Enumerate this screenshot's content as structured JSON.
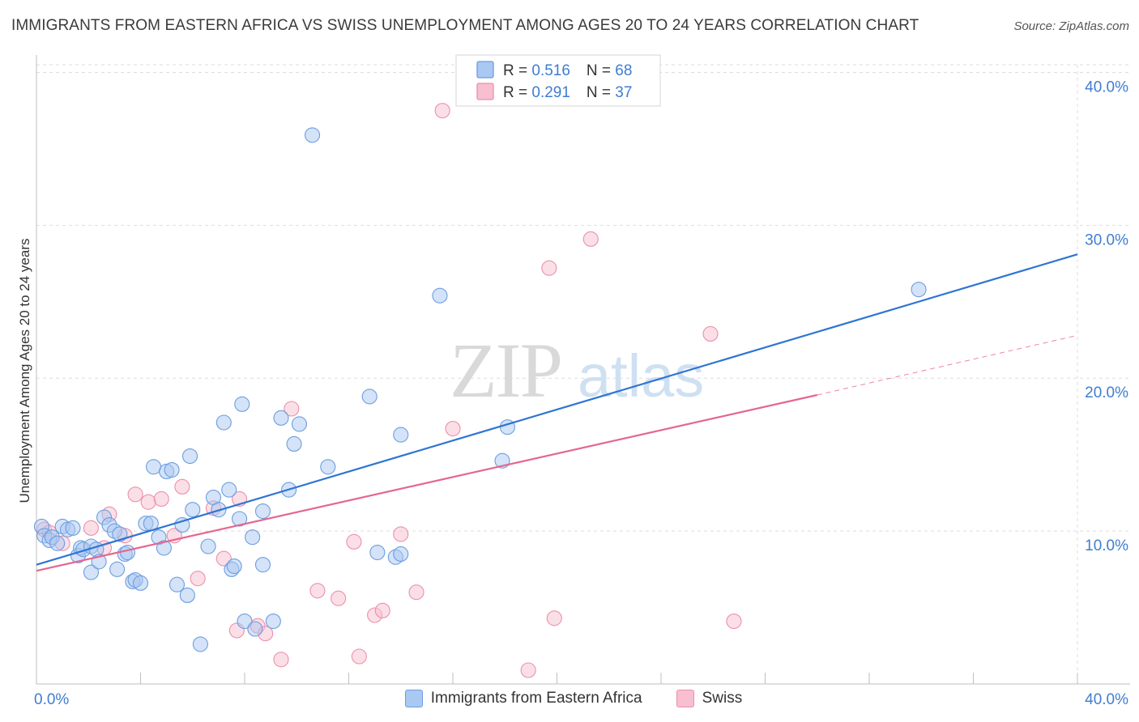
{
  "title": "IMMIGRANTS FROM EASTERN AFRICA VS SWISS UNEMPLOYMENT AMONG AGES 20 TO 24 YEARS CORRELATION CHART",
  "source": "Source: ZipAtlas.com",
  "watermark": {
    "zip": "ZIP",
    "atlas": "atlas"
  },
  "colors": {
    "blue": "#a9c8f2",
    "blue_stroke": "#6d9de0",
    "blue_line": "#2f75d3",
    "pink": "#f7bfd0",
    "pink_stroke": "#ec8fac",
    "pink_line": "#e5668f",
    "tick_label": "#3f7dd0"
  },
  "legend": {
    "items": [
      {
        "r_label": "R = ",
        "r_value": "0.516",
        "n_label": "N = ",
        "n_value": "68"
      },
      {
        "r_label": "R = ",
        "r_value": "0.291",
        "n_label": "N = ",
        "n_value": "37"
      }
    ]
  },
  "bottom_legend": {
    "blue_label": "Immigrants from Eastern Africa",
    "pink_label": "Swiss"
  },
  "chart_data": {
    "type": "scatter",
    "title": "IMMIGRANTS FROM EASTERN AFRICA VS SWISS UNEMPLOYMENT AMONG AGES 20 TO 24 YEARS CORRELATION CHART",
    "xlabel": "",
    "ylabel": "Unemployment Among Ages 20 to 24 years",
    "xlim": [
      0,
      40
    ],
    "ylim": [
      0,
      40.5
    ],
    "x_tick_labels": [
      "0.0%",
      "40.0%"
    ],
    "y_ticks": [
      10,
      20,
      30,
      40
    ],
    "y_tick_labels": [
      "10.0%",
      "20.0%",
      "30.0%",
      "40.0%"
    ],
    "grid": true,
    "legend_position": "top-center",
    "series": [
      {
        "name": "Immigrants from Eastern Africa",
        "trend": {
          "x": [
            0,
            40
          ],
          "y": [
            7.8,
            28.1
          ],
          "dashed_from": null
        },
        "points": [
          [
            0.2,
            10.3
          ],
          [
            0.3,
            9.7
          ],
          [
            0.5,
            9.4
          ],
          [
            0.6,
            9.6
          ],
          [
            0.8,
            9.2
          ],
          [
            1.0,
            10.3
          ],
          [
            1.2,
            10.1
          ],
          [
            1.4,
            10.2
          ],
          [
            1.6,
            8.4
          ],
          [
            1.7,
            8.9
          ],
          [
            1.8,
            8.8
          ],
          [
            2.1,
            9.0
          ],
          [
            2.1,
            7.3
          ],
          [
            2.3,
            8.8
          ],
          [
            2.4,
            8.0
          ],
          [
            2.6,
            10.9
          ],
          [
            2.8,
            10.4
          ],
          [
            3.0,
            10.0
          ],
          [
            3.1,
            7.5
          ],
          [
            3.2,
            9.8
          ],
          [
            3.4,
            8.5
          ],
          [
            3.5,
            8.6
          ],
          [
            3.7,
            6.7
          ],
          [
            3.8,
            6.8
          ],
          [
            4.0,
            6.6
          ],
          [
            4.2,
            10.5
          ],
          [
            4.4,
            10.5
          ],
          [
            4.5,
            14.2
          ],
          [
            4.7,
            9.6
          ],
          [
            4.9,
            8.9
          ],
          [
            5.0,
            13.9
          ],
          [
            5.2,
            14.0
          ],
          [
            5.4,
            6.5
          ],
          [
            5.6,
            10.4
          ],
          [
            5.8,
            5.8
          ],
          [
            5.9,
            14.9
          ],
          [
            6.0,
            11.4
          ],
          [
            6.3,
            2.6
          ],
          [
            6.6,
            9.0
          ],
          [
            6.8,
            12.2
          ],
          [
            7.0,
            11.4
          ],
          [
            7.2,
            17.1
          ],
          [
            7.4,
            12.7
          ],
          [
            7.5,
            7.5
          ],
          [
            7.6,
            7.7
          ],
          [
            7.8,
            10.8
          ],
          [
            7.9,
            18.3
          ],
          [
            8.0,
            4.1
          ],
          [
            8.3,
            9.6
          ],
          [
            8.4,
            3.6
          ],
          [
            8.7,
            11.3
          ],
          [
            8.7,
            7.8
          ],
          [
            9.1,
            4.1
          ],
          [
            9.4,
            17.4
          ],
          [
            9.7,
            12.7
          ],
          [
            9.9,
            15.7
          ],
          [
            10.1,
            17.0
          ],
          [
            10.6,
            35.9
          ],
          [
            11.2,
            14.2
          ],
          [
            12.8,
            18.8
          ],
          [
            13.1,
            8.6
          ],
          [
            13.8,
            8.3
          ],
          [
            14.0,
            16.3
          ],
          [
            14.0,
            8.5
          ],
          [
            15.5,
            25.4
          ],
          [
            17.9,
            14.6
          ],
          [
            18.1,
            16.8
          ],
          [
            33.9,
            25.8
          ]
        ]
      },
      {
        "name": "Swiss",
        "trend": {
          "x": [
            0,
            30,
            40
          ],
          "y": [
            7.4,
            18.9,
            22.8
          ],
          "dashed_from": 30
        },
        "points": [
          [
            0.3,
            10.1
          ],
          [
            0.5,
            9.9
          ],
          [
            1.0,
            9.2
          ],
          [
            2.1,
            10.2
          ],
          [
            2.6,
            8.9
          ],
          [
            2.8,
            11.1
          ],
          [
            3.4,
            9.7
          ],
          [
            3.8,
            12.4
          ],
          [
            4.3,
            11.9
          ],
          [
            4.8,
            12.1
          ],
          [
            5.3,
            9.7
          ],
          [
            5.6,
            12.9
          ],
          [
            6.2,
            6.9
          ],
          [
            6.8,
            11.5
          ],
          [
            7.2,
            8.2
          ],
          [
            7.7,
            3.5
          ],
          [
            7.8,
            12.1
          ],
          [
            8.5,
            3.8
          ],
          [
            8.8,
            3.3
          ],
          [
            9.4,
            1.6
          ],
          [
            9.8,
            18.0
          ],
          [
            10.8,
            6.1
          ],
          [
            11.6,
            5.6
          ],
          [
            12.2,
            9.3
          ],
          [
            12.4,
            1.8
          ],
          [
            13.0,
            4.5
          ],
          [
            13.3,
            4.8
          ],
          [
            14.0,
            9.8
          ],
          [
            14.6,
            6.0
          ],
          [
            15.6,
            37.5
          ],
          [
            16.0,
            16.7
          ],
          [
            18.9,
            0.9
          ],
          [
            19.7,
            27.2
          ],
          [
            19.9,
            4.3
          ],
          [
            21.3,
            29.1
          ],
          [
            25.9,
            22.9
          ],
          [
            26.8,
            4.1
          ]
        ]
      }
    ]
  }
}
